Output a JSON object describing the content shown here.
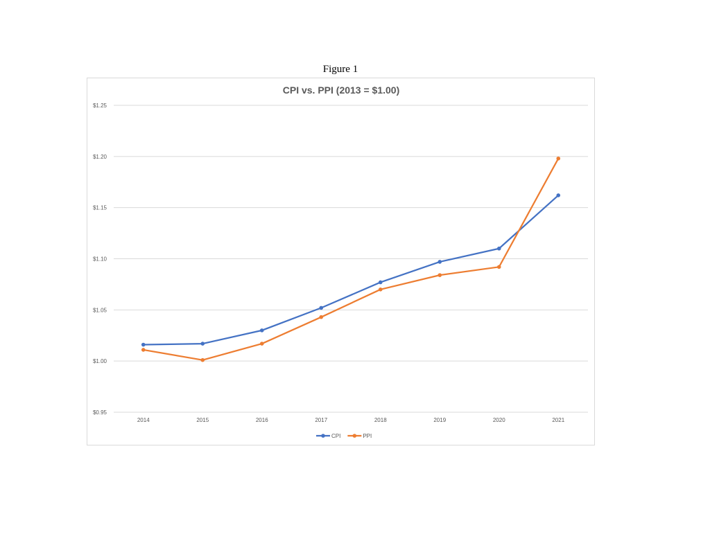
{
  "figure_caption": "Figure 1",
  "chart_data": {
    "type": "line",
    "title": "CPI vs. PPI (2013 = $1.00)",
    "xlabel": "",
    "ylabel": "",
    "categories": [
      "2014",
      "2015",
      "2016",
      "2017",
      "2018",
      "2019",
      "2020",
      "2021"
    ],
    "ylim": [
      0.95,
      1.25
    ],
    "yticks": [
      0.95,
      1.0,
      1.05,
      1.1,
      1.15,
      1.2,
      1.25
    ],
    "ytick_labels": [
      "$0.95",
      "$1.00",
      "$1.05",
      "$1.10",
      "$1.15",
      "$1.20",
      "$1.25"
    ],
    "grid": true,
    "legend_position": "bottom",
    "series": [
      {
        "name": "CPI",
        "color": "#4472c4",
        "values": [
          1.016,
          1.017,
          1.03,
          1.052,
          1.077,
          1.097,
          1.11,
          1.162
        ]
      },
      {
        "name": "PPI",
        "color": "#ed7d31",
        "values": [
          1.011,
          1.001,
          1.017,
          1.043,
          1.07,
          1.084,
          1.092,
          1.198
        ]
      }
    ]
  }
}
